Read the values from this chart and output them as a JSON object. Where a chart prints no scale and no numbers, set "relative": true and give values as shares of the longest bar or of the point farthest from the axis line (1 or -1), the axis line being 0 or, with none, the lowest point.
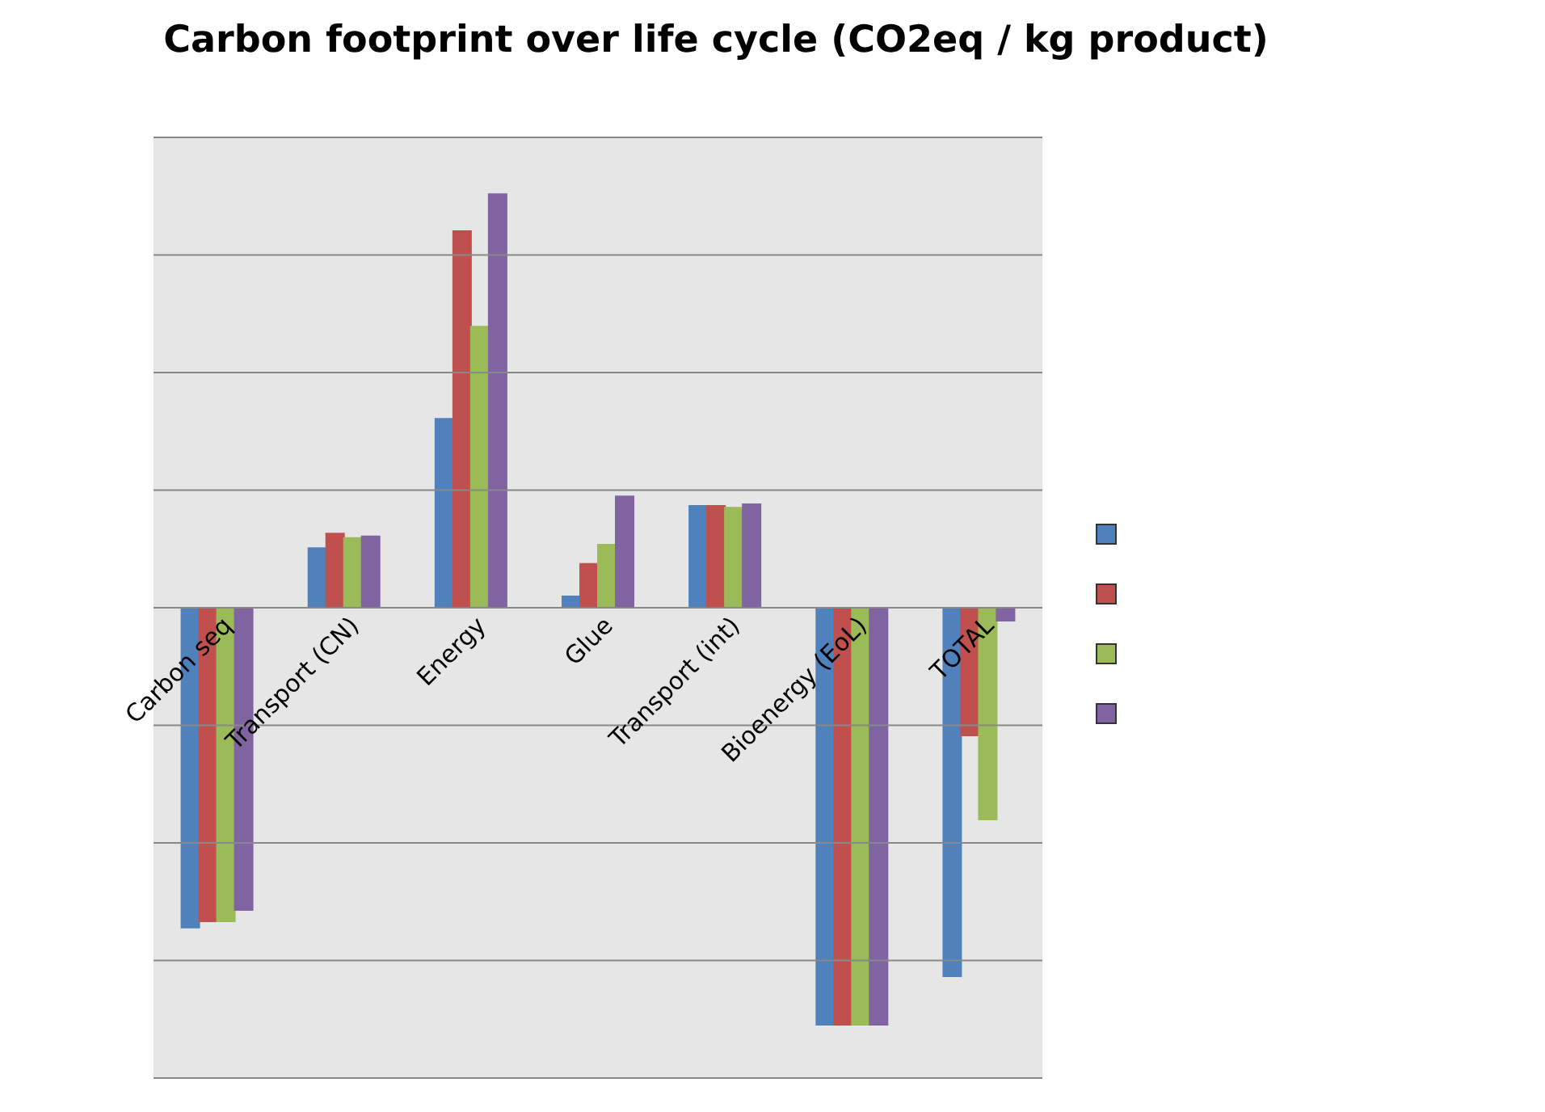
{
  "chart_data": {
    "type": "bar",
    "title": "Carbon footprint over life cycle (CO2eq / kg product)",
    "relative": true,
    "grid": "y",
    "categories": [
      "Carbon seq",
      "Transport (CN)",
      "Energy",
      "Glue",
      "Transport (int)",
      "Bioenergy (EoL)",
      "TOTAL"
    ],
    "series": [
      {
        "color": "#4f81bd",
        "values": [
          -0.767,
          0.143,
          0.453,
          0.027,
          0.244,
          -1,
          -0.884
        ]
      },
      {
        "color": "#c0504d",
        "values": [
          -0.752,
          0.178,
          0.903,
          0.105,
          0.244,
          -1,
          -0.306
        ]
      },
      {
        "color": "#9bbb59",
        "values": [
          -0.752,
          0.167,
          0.674,
          0.151,
          0.24,
          -1,
          -0.508
        ]
      },
      {
        "color": "#8064a2",
        "values": [
          -0.725,
          0.171,
          0.992,
          0.267,
          0.248,
          -1,
          -0.031
        ]
      }
    ]
  }
}
